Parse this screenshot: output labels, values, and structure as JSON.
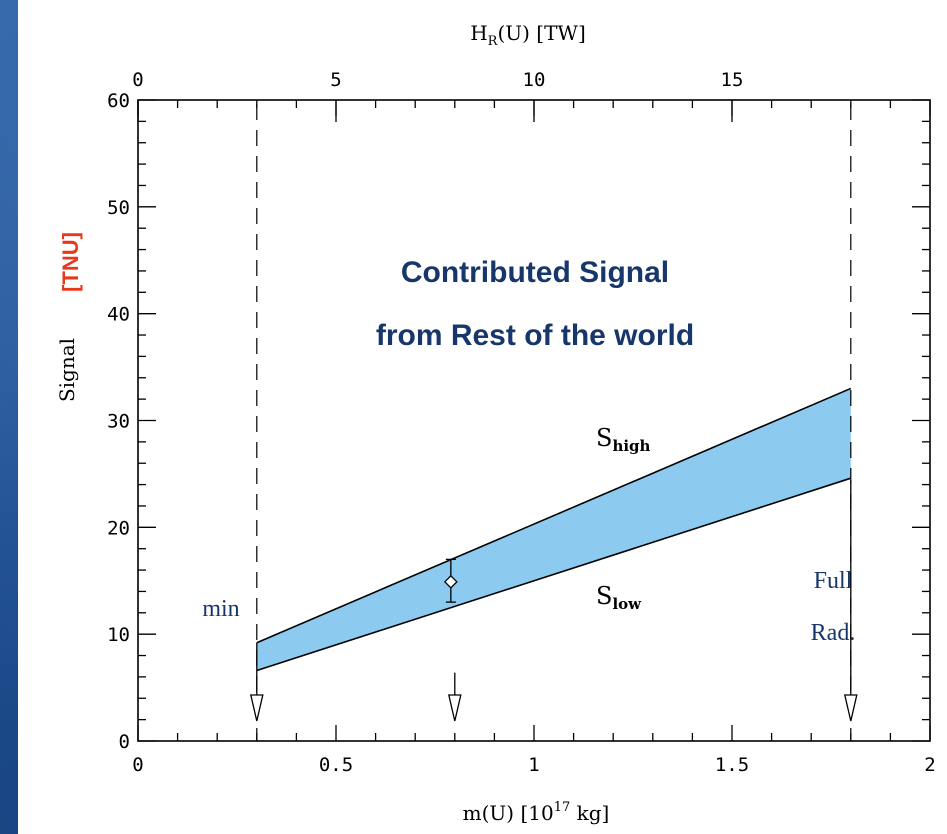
{
  "chart_data": {
    "type": "area",
    "xlabel": "m(U)  [10",
    "xlabel_exp": "17",
    "xlabel_tail": " kg]",
    "x2label": "H",
    "x2label_sub": "R",
    "x2label_tail": "(U)  [TW]",
    "ylabel": "Signal",
    "ylabel_unit": "[TNU]",
    "xlim": [
      0,
      2
    ],
    "ylim": [
      0,
      60
    ],
    "x2lim": [
      0,
      20
    ],
    "xticks": [
      0,
      0.5,
      1,
      1.5,
      2
    ],
    "xtick_labels": [
      "0",
      "0.5",
      "1",
      "1.5",
      "2"
    ],
    "x2ticks": [
      0,
      5,
      10,
      15
    ],
    "x2tick_labels": [
      "0",
      "5",
      "10",
      "15"
    ],
    "yticks": [
      0,
      10,
      20,
      30,
      40,
      50,
      60
    ],
    "ytick_labels": [
      "0",
      "10",
      "20",
      "30",
      "40",
      "50",
      "60"
    ],
    "band": {
      "x": [
        0.3,
        1.8
      ],
      "high": [
        9.2,
        33.0
      ],
      "low": [
        6.6,
        24.6
      ],
      "color": "#8ccbef"
    },
    "series": [
      {
        "name": "S",
        "name_sub": "high",
        "x": [
          0.3,
          1.8
        ],
        "y": [
          9.2,
          33.0
        ]
      },
      {
        "name": "S",
        "name_sub": "low",
        "x": [
          0.3,
          1.8
        ],
        "y": [
          6.6,
          24.6
        ]
      }
    ],
    "point": {
      "x": 0.79,
      "y": 14.9,
      "err_low": 13.0,
      "err_high": 17.0
    },
    "vlines": [
      0.3,
      1.8
    ],
    "arrows": [
      0.3,
      0.8,
      1.8
    ],
    "annotations": {
      "title_line1": "Contributed Signal",
      "title_line2": "from Rest of the world",
      "min_label": "min",
      "full_label_line1": "Full",
      "full_label_line2": "Rad."
    }
  }
}
